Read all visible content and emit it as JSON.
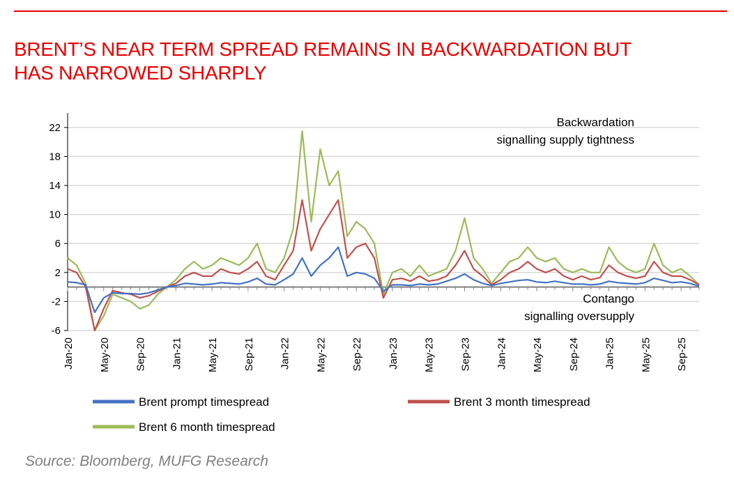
{
  "header": {
    "title_line1": "BRENT’S NEAR TERM SPREAD REMAINS IN BACKWARDATION BUT",
    "title_line2": "HAS NARROWED SHARPLY"
  },
  "footer": {
    "source": "Source: Bloomberg, MUFG Research"
  },
  "colors": {
    "accent": "#e60000",
    "prompt": "#4472c4",
    "three_month": "#c0504d",
    "six_month": "#9bbb59",
    "zero_line": "#808080",
    "grid": "#d9d9d9"
  },
  "chart_data": {
    "type": "line",
    "title": "BRENT’S NEAR TERM SPREAD REMAINS IN BACKWARDATION BUT HAS NARROWED SHARPLY",
    "xlabel": "",
    "ylabel": "",
    "ylim": [
      -6,
      24
    ],
    "y_ticks": [
      22,
      18,
      14,
      10,
      6,
      2,
      -2,
      -6
    ],
    "x_range": [
      "2020-01",
      "2025-11"
    ],
    "x_ticks": [
      "Jan-20",
      "May-20",
      "Sep-20",
      "Jan-21",
      "May-21",
      "Sep-21",
      "Jan-22",
      "May-22",
      "Sep-22",
      "Jan-23",
      "May-23",
      "Sep-23",
      "Jan-24",
      "May-24",
      "Sep-24",
      "Jan-25",
      "May-25",
      "Sep-25"
    ],
    "grid": true,
    "legend_position": "bottom",
    "annotations": [
      {
        "lines": [
          "Backwardation",
          "signalling supply tightness"
        ],
        "position": "upper-right"
      },
      {
        "lines": [
          "Contango",
          "signalling oversupply"
        ],
        "position": "lower-right"
      }
    ],
    "series": [
      {
        "name": "Brent prompt timespread",
        "color": "#4472c4",
        "points": [
          [
            "2020-01",
            0.7
          ],
          [
            "2020-02",
            0.6
          ],
          [
            "2020-03",
            0.3
          ],
          [
            "2020-04",
            -3.5
          ],
          [
            "2020-05",
            -1.5
          ],
          [
            "2020-06",
            -0.8
          ],
          [
            "2020-07",
            -0.9
          ],
          [
            "2020-08",
            -0.9
          ],
          [
            "2020-09",
            -1.0
          ],
          [
            "2020-10",
            -0.8
          ],
          [
            "2020-11",
            -0.4
          ],
          [
            "2020-12",
            0.0
          ],
          [
            "2021-01",
            0.2
          ],
          [
            "2021-02",
            0.5
          ],
          [
            "2021-03",
            0.4
          ],
          [
            "2021-04",
            0.3
          ],
          [
            "2021-05",
            0.4
          ],
          [
            "2021-06",
            0.6
          ],
          [
            "2021-07",
            0.5
          ],
          [
            "2021-08",
            0.4
          ],
          [
            "2021-09",
            0.7
          ],
          [
            "2021-10",
            1.2
          ],
          [
            "2021-11",
            0.4
          ],
          [
            "2021-12",
            0.3
          ],
          [
            "2022-01",
            1.0
          ],
          [
            "2022-02",
            1.8
          ],
          [
            "2022-03",
            4.0
          ],
          [
            "2022-04",
            1.5
          ],
          [
            "2022-05",
            3.0
          ],
          [
            "2022-06",
            4.0
          ],
          [
            "2022-07",
            5.5
          ],
          [
            "2022-08",
            1.5
          ],
          [
            "2022-09",
            2.0
          ],
          [
            "2022-10",
            1.8
          ],
          [
            "2022-11",
            1.2
          ],
          [
            "2022-12",
            -0.6
          ],
          [
            "2023-01",
            0.3
          ],
          [
            "2023-02",
            0.3
          ],
          [
            "2023-03",
            0.2
          ],
          [
            "2023-04",
            0.4
          ],
          [
            "2023-05",
            0.3
          ],
          [
            "2023-06",
            0.4
          ],
          [
            "2023-07",
            0.8
          ],
          [
            "2023-08",
            1.2
          ],
          [
            "2023-09",
            1.8
          ],
          [
            "2023-10",
            1.0
          ],
          [
            "2023-11",
            0.5
          ],
          [
            "2023-12",
            0.2
          ],
          [
            "2024-01",
            0.5
          ],
          [
            "2024-02",
            0.7
          ],
          [
            "2024-03",
            0.9
          ],
          [
            "2024-04",
            1.0
          ],
          [
            "2024-05",
            0.7
          ],
          [
            "2024-06",
            0.6
          ],
          [
            "2024-07",
            0.8
          ],
          [
            "2024-08",
            0.6
          ],
          [
            "2024-09",
            0.4
          ],
          [
            "2024-10",
            0.4
          ],
          [
            "2024-11",
            0.3
          ],
          [
            "2024-12",
            0.4
          ],
          [
            "2025-01",
            0.8
          ],
          [
            "2025-02",
            0.6
          ],
          [
            "2025-03",
            0.5
          ],
          [
            "2025-04",
            0.4
          ],
          [
            "2025-05",
            0.6
          ],
          [
            "2025-06",
            1.2
          ],
          [
            "2025-07",
            0.9
          ],
          [
            "2025-08",
            0.6
          ],
          [
            "2025-09",
            0.7
          ],
          [
            "2025-10",
            0.5
          ],
          [
            "2025-11",
            0.1
          ]
        ]
      },
      {
        "name": "Brent 3 month timespread",
        "color": "#c0504d",
        "points": [
          [
            "2020-01",
            2.5
          ],
          [
            "2020-02",
            2.0
          ],
          [
            "2020-03",
            0.0
          ],
          [
            "2020-04",
            -6.0
          ],
          [
            "2020-05",
            -3.0
          ],
          [
            "2020-06",
            -0.5
          ],
          [
            "2020-07",
            -0.8
          ],
          [
            "2020-08",
            -1.0
          ],
          [
            "2020-09",
            -1.5
          ],
          [
            "2020-10",
            -1.2
          ],
          [
            "2020-11",
            -0.6
          ],
          [
            "2020-12",
            0.0
          ],
          [
            "2021-01",
            0.5
          ],
          [
            "2021-02",
            1.5
          ],
          [
            "2021-03",
            2.0
          ],
          [
            "2021-04",
            1.5
          ],
          [
            "2021-05",
            1.5
          ],
          [
            "2021-06",
            2.5
          ],
          [
            "2021-07",
            2.0
          ],
          [
            "2021-08",
            1.8
          ],
          [
            "2021-09",
            2.5
          ],
          [
            "2021-10",
            3.5
          ],
          [
            "2021-11",
            1.5
          ],
          [
            "2021-12",
            1.0
          ],
          [
            "2022-01",
            3.0
          ],
          [
            "2022-02",
            5.0
          ],
          [
            "2022-03",
            12.0
          ],
          [
            "2022-04",
            5.0
          ],
          [
            "2022-05",
            8.0
          ],
          [
            "2022-06",
            10.0
          ],
          [
            "2022-07",
            12.0
          ],
          [
            "2022-08",
            4.0
          ],
          [
            "2022-09",
            5.5
          ],
          [
            "2022-10",
            6.0
          ],
          [
            "2022-11",
            4.0
          ],
          [
            "2022-12",
            -1.5
          ],
          [
            "2023-01",
            1.0
          ],
          [
            "2023-02",
            1.2
          ],
          [
            "2023-03",
            0.8
          ],
          [
            "2023-04",
            1.5
          ],
          [
            "2023-05",
            0.8
          ],
          [
            "2023-06",
            1.0
          ],
          [
            "2023-07",
            1.5
          ],
          [
            "2023-08",
            3.0
          ],
          [
            "2023-09",
            5.0
          ],
          [
            "2023-10",
            2.5
          ],
          [
            "2023-11",
            1.5
          ],
          [
            "2023-12",
            0.3
          ],
          [
            "2024-01",
            1.0
          ],
          [
            "2024-02",
            2.0
          ],
          [
            "2024-03",
            2.5
          ],
          [
            "2024-04",
            3.5
          ],
          [
            "2024-05",
            2.5
          ],
          [
            "2024-06",
            2.0
          ],
          [
            "2024-07",
            2.5
          ],
          [
            "2024-08",
            1.5
          ],
          [
            "2024-09",
            1.0
          ],
          [
            "2024-10",
            1.5
          ],
          [
            "2024-11",
            1.0
          ],
          [
            "2024-12",
            1.3
          ],
          [
            "2025-01",
            3.0
          ],
          [
            "2025-02",
            2.0
          ],
          [
            "2025-03",
            1.5
          ],
          [
            "2025-04",
            1.2
          ],
          [
            "2025-05",
            1.5
          ],
          [
            "2025-06",
            3.5
          ],
          [
            "2025-07",
            2.0
          ],
          [
            "2025-08",
            1.5
          ],
          [
            "2025-09",
            1.5
          ],
          [
            "2025-10",
            1.0
          ],
          [
            "2025-11",
            0.3
          ]
        ]
      },
      {
        "name": "Brent 6 month timespread",
        "color": "#9bbb59",
        "points": [
          [
            "2020-01",
            4.0
          ],
          [
            "2020-02",
            3.0
          ],
          [
            "2020-03",
            0.5
          ],
          [
            "2020-04",
            -8.0
          ],
          [
            "2020-05",
            -4.0
          ],
          [
            "2020-06",
            -1.0
          ],
          [
            "2020-07",
            -1.5
          ],
          [
            "2020-08",
            -2.0
          ],
          [
            "2020-09",
            -3.0
          ],
          [
            "2020-10",
            -2.5
          ],
          [
            "2020-11",
            -1.0
          ],
          [
            "2020-12",
            0.0
          ],
          [
            "2021-01",
            1.0
          ],
          [
            "2021-02",
            2.5
          ],
          [
            "2021-03",
            3.5
          ],
          [
            "2021-04",
            2.5
          ],
          [
            "2021-05",
            3.0
          ],
          [
            "2021-06",
            4.0
          ],
          [
            "2021-07",
            3.5
          ],
          [
            "2021-08",
            3.0
          ],
          [
            "2021-09",
            4.0
          ],
          [
            "2021-10",
            6.0
          ],
          [
            "2021-11",
            2.5
          ],
          [
            "2021-12",
            2.0
          ],
          [
            "2022-01",
            4.0
          ],
          [
            "2022-02",
            8.0
          ],
          [
            "2022-03",
            21.5
          ],
          [
            "2022-04",
            9.0
          ],
          [
            "2022-05",
            19.0
          ],
          [
            "2022-06",
            14.0
          ],
          [
            "2022-07",
            16.0
          ],
          [
            "2022-08",
            7.0
          ],
          [
            "2022-09",
            9.0
          ],
          [
            "2022-10",
            8.0
          ],
          [
            "2022-11",
            6.0
          ],
          [
            "2022-12",
            -1.0
          ],
          [
            "2023-01",
            2.0
          ],
          [
            "2023-02",
            2.5
          ],
          [
            "2023-03",
            1.5
          ],
          [
            "2023-04",
            3.0
          ],
          [
            "2023-05",
            1.5
          ],
          [
            "2023-06",
            2.0
          ],
          [
            "2023-07",
            2.5
          ],
          [
            "2023-08",
            5.0
          ],
          [
            "2023-09",
            9.5
          ],
          [
            "2023-10",
            4.0
          ],
          [
            "2023-11",
            2.5
          ],
          [
            "2023-12",
            0.5
          ],
          [
            "2024-01",
            2.0
          ],
          [
            "2024-02",
            3.5
          ],
          [
            "2024-03",
            4.0
          ],
          [
            "2024-04",
            5.5
          ],
          [
            "2024-05",
            4.0
          ],
          [
            "2024-06",
            3.5
          ],
          [
            "2024-07",
            4.0
          ],
          [
            "2024-08",
            2.5
          ],
          [
            "2024-09",
            2.0
          ],
          [
            "2024-10",
            2.5
          ],
          [
            "2024-11",
            2.0
          ],
          [
            "2024-12",
            2.0
          ],
          [
            "2025-01",
            5.5
          ],
          [
            "2025-02",
            3.5
          ],
          [
            "2025-03",
            2.5
          ],
          [
            "2025-04",
            2.0
          ],
          [
            "2025-05",
            2.5
          ],
          [
            "2025-06",
            6.0
          ],
          [
            "2025-07",
            3.0
          ],
          [
            "2025-08",
            2.0
          ],
          [
            "2025-09",
            2.5
          ],
          [
            "2025-10",
            1.5
          ],
          [
            "2025-11",
            0.3
          ]
        ]
      }
    ]
  }
}
